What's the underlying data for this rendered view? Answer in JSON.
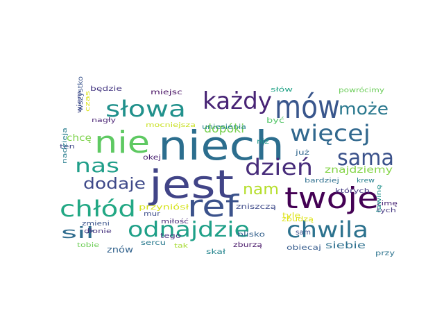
{
  "word_cloud": {
    "words": [
      {
        "text": "niech",
        "color": "#2c6e8e"
      },
      {
        "text": "mów",
        "color": "#39568c"
      },
      {
        "text": "jest",
        "color": "#414487"
      },
      {
        "text": "twoje",
        "color": "#440154"
      },
      {
        "text": "ref",
        "color": "#3b528b"
      },
      {
        "text": "nie",
        "color": "#5ec962"
      },
      {
        "text": "każdy",
        "color": "#482475"
      },
      {
        "text": "słowa",
        "color": "#21918c"
      },
      {
        "text": "więcej",
        "color": "#31688e"
      },
      {
        "text": "sama",
        "color": "#3b528b"
      },
      {
        "text": "dzień",
        "color": "#472c7a"
      },
      {
        "text": "chłód",
        "color": "#22a884"
      },
      {
        "text": "chwila",
        "color": "#2c728e"
      },
      {
        "text": "odnajdzie",
        "color": "#1fa088"
      },
      {
        "text": "nas",
        "color": "#1f9e89"
      },
      {
        "text": "może",
        "color": "#2a788e"
      },
      {
        "text": "dodaje",
        "color": "#3e4989"
      },
      {
        "text": "nam",
        "color": "#b5de2b"
      },
      {
        "text": "sił",
        "color": "#2f6c8e"
      },
      {
        "text": "dopóki",
        "color": "#7ad151"
      },
      {
        "text": "chcę",
        "color": "#7fd34e"
      },
      {
        "text": "znajdziemy",
        "color": "#86d549"
      },
      {
        "text": "znów",
        "color": "#33638d"
      },
      {
        "text": "siebie",
        "color": "#2d708e"
      },
      {
        "text": "obiecaj",
        "color": "#365c8d"
      },
      {
        "text": "mocniejsza",
        "color": "#c8e020"
      },
      {
        "text": "uniesienia",
        "color": "#25838e"
      },
      {
        "text": "przyniósł",
        "color": "#d5e21a"
      },
      {
        "text": "zniszczą",
        "color": "#3e4a89"
      },
      {
        "text": "zbudzą",
        "color": "#dde318"
      },
      {
        "text": "będzie",
        "color": "#453781"
      },
      {
        "text": "miejsc",
        "color": "#471063"
      },
      {
        "text": "słów",
        "color": "#20a386"
      },
      {
        "text": "powrócimy",
        "color": "#6ccd5a"
      },
      {
        "text": "wszystko",
        "color": "#3a548c"
      },
      {
        "text": "wiem",
        "color": "#3f4889"
      },
      {
        "text": "czas",
        "color": "#dae319"
      },
      {
        "text": "nagły",
        "color": "#482173"
      },
      {
        "text": "być",
        "color": "#54c568"
      },
      {
        "text": "niż",
        "color": "#1f9a8a"
      },
      {
        "text": "już",
        "color": "#31678e"
      },
      {
        "text": "ten",
        "color": "#3f4788"
      },
      {
        "text": "nadzieja",
        "color": "#287d8e"
      },
      {
        "text": "okej",
        "color": "#482071"
      },
      {
        "text": "mur",
        "color": "#3d4d8a"
      },
      {
        "text": "miłość",
        "color": "#482979"
      },
      {
        "text": "dłonie",
        "color": "#46327e"
      },
      {
        "text": "tego",
        "color": "#46337f"
      },
      {
        "text": "zmieni",
        "color": "#3a538b"
      },
      {
        "text": "blisko",
        "color": "#34618d"
      },
      {
        "text": "sam",
        "color": "#3c4f8a"
      },
      {
        "text": "tyle",
        "color": "#dde318"
      },
      {
        "text": "krew",
        "color": "#277f8e"
      },
      {
        "text": "bardziej",
        "color": "#2e6f8e"
      },
      {
        "text": "których",
        "color": "#443983"
      },
      {
        "text": "tych",
        "color": "#453882"
      },
      {
        "text": "zimę",
        "color": "#482576"
      },
      {
        "text": "lawinę",
        "color": "#20928c"
      },
      {
        "text": "przy",
        "color": "#2c738e"
      },
      {
        "text": "tobie",
        "color": "#6ece58"
      },
      {
        "text": "sercu",
        "color": "#29798e"
      },
      {
        "text": "tak",
        "color": "#a8db34"
      },
      {
        "text": "skał",
        "color": "#25858e"
      },
      {
        "text": "zburzą",
        "color": "#481769"
      }
    ]
  }
}
